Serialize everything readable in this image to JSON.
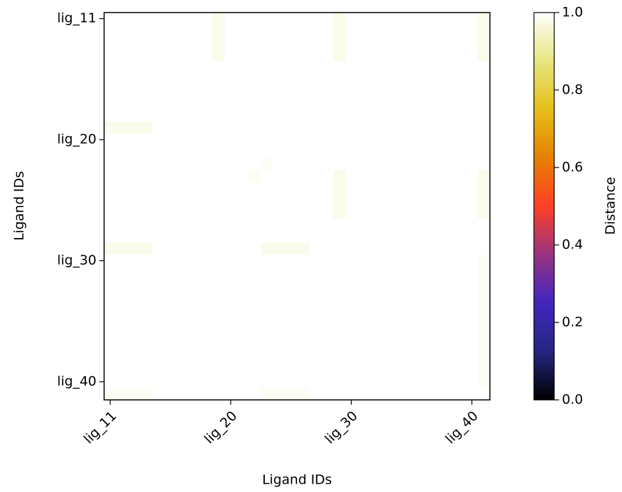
{
  "chart_data": {
    "type": "heatmap",
    "xlabel": "Ligand IDs",
    "ylabel": "Ligand IDs",
    "colorbar_label": "Distance",
    "categories": [
      "lig_11",
      null,
      null,
      null,
      null,
      null,
      null,
      null,
      null,
      null,
      "lig_20",
      null,
      null,
      null,
      null,
      null,
      null,
      null,
      null,
      null,
      "lig_30",
      null,
      null,
      null,
      null,
      null,
      null,
      null,
      null,
      null,
      "lig_40",
      null
    ],
    "colormap": [
      "#000000",
      "#262680",
      "#4026bf",
      "#993380",
      "#ff4026",
      "#e68000",
      "#e6bf1a",
      "#e6e680",
      "#ffffff"
    ],
    "clim": [
      0,
      1
    ],
    "cticks": [
      {
        "value": 0,
        "label": "0.0"
      },
      {
        "value": 0.2,
        "label": "0.2"
      },
      {
        "value": 0.4,
        "label": "0.4"
      },
      {
        "value": 0.6,
        "label": "0.6"
      },
      {
        "value": 0.8,
        "label": "0.8"
      },
      {
        "value": 1,
        "label": "1.0"
      }
    ],
    "values": [
      [
        1,
        1,
        1,
        1,
        1,
        1,
        1,
        1,
        1,
        0.98,
        1,
        1,
        1,
        1,
        1,
        1,
        1,
        1,
        1,
        0.98,
        1,
        1,
        1,
        1,
        1,
        1,
        1,
        1,
        1,
        1,
        1,
        0.98
      ],
      [
        1,
        1,
        1,
        1,
        1,
        1,
        1,
        1,
        1,
        0.98,
        1,
        1,
        1,
        1,
        1,
        1,
        1,
        1,
        1,
        0.98,
        1,
        1,
        1,
        1,
        1,
        1,
        1,
        1,
        1,
        1,
        1,
        0.98
      ],
      [
        1,
        1,
        1,
        1,
        1,
        1,
        1,
        1,
        1,
        0.98,
        1,
        1,
        1,
        1,
        1,
        1,
        1,
        1,
        1,
        0.98,
        1,
        1,
        1,
        1,
        1,
        1,
        1,
        1,
        1,
        1,
        1,
        0.98
      ],
      [
        1,
        1,
        1,
        1,
        1,
        1,
        1,
        1,
        1,
        0.98,
        1,
        1,
        1,
        1,
        1,
        1,
        1,
        1,
        1,
        0.98,
        1,
        1,
        1,
        1,
        1,
        1,
        1,
        1,
        1,
        1,
        1,
        0.98
      ],
      [
        1,
        1,
        1,
        1,
        1,
        1,
        1,
        1,
        1,
        1,
        1,
        1,
        1,
        1,
        1,
        1,
        1,
        1,
        1,
        1,
        1,
        1,
        1,
        1,
        1,
        1,
        1,
        1,
        1,
        1,
        1,
        1
      ],
      [
        1,
        1,
        1,
        1,
        1,
        1,
        1,
        1,
        1,
        1,
        1,
        1,
        1,
        1,
        1,
        1,
        1,
        1,
        1,
        1,
        1,
        1,
        1,
        1,
        1,
        1,
        1,
        1,
        1,
        1,
        1,
        1
      ],
      [
        1,
        1,
        1,
        1,
        1,
        1,
        1,
        1,
        1,
        1,
        1,
        1,
        1,
        1,
        1,
        1,
        1,
        1,
        1,
        1,
        1,
        1,
        1,
        1,
        1,
        1,
        1,
        1,
        1,
        1,
        1,
        1
      ],
      [
        1,
        1,
        1,
        1,
        1,
        1,
        1,
        1,
        1,
        1,
        1,
        1,
        1,
        1,
        1,
        1,
        1,
        1,
        1,
        1,
        1,
        1,
        1,
        1,
        1,
        1,
        1,
        1,
        1,
        1,
        1,
        1
      ],
      [
        1,
        1,
        1,
        1,
        1,
        1,
        1,
        1,
        1,
        1,
        1,
        1,
        1,
        1,
        1,
        1,
        1,
        1,
        1,
        1,
        1,
        1,
        1,
        1,
        1,
        1,
        1,
        1,
        1,
        1,
        1,
        1
      ],
      [
        0.98,
        0.98,
        0.98,
        0.98,
        1,
        1,
        1,
        1,
        1,
        1,
        1,
        1,
        1,
        1,
        1,
        1,
        1,
        1,
        1,
        1,
        1,
        1,
        1,
        1,
        1,
        1,
        1,
        1,
        1,
        1,
        1,
        1
      ],
      [
        1,
        1,
        1,
        1,
        1,
        1,
        1,
        1,
        1,
        1,
        1,
        1,
        1,
        1,
        1,
        1,
        1,
        1,
        1,
        1,
        1,
        1,
        1,
        1,
        1,
        1,
        1,
        1,
        1,
        1,
        1,
        1
      ],
      [
        1,
        1,
        1,
        1,
        1,
        1,
        1,
        1,
        1,
        1,
        1,
        1,
        1,
        1,
        1,
        1,
        1,
        1,
        1,
        1,
        1,
        1,
        1,
        1,
        1,
        1,
        1,
        1,
        1,
        1,
        1,
        1
      ],
      [
        1,
        1,
        1,
        1,
        1,
        1,
        1,
        1,
        1,
        1,
        1,
        1,
        1,
        0.99,
        1,
        1,
        1,
        1,
        1,
        1,
        1,
        1,
        1,
        1,
        1,
        1,
        1,
        1,
        1,
        1,
        1,
        1
      ],
      [
        1,
        1,
        1,
        1,
        1,
        1,
        1,
        1,
        1,
        1,
        1,
        1,
        0.99,
        1,
        1,
        1,
        1,
        1,
        1,
        0.98,
        1,
        1,
        1,
        1,
        1,
        1,
        1,
        1,
        1,
        1,
        1,
        0.98
      ],
      [
        1,
        1,
        1,
        1,
        1,
        1,
        1,
        1,
        1,
        1,
        1,
        1,
        1,
        1,
        1,
        1,
        1,
        1,
        1,
        0.98,
        1,
        1,
        1,
        1,
        1,
        1,
        1,
        1,
        1,
        1,
        1,
        0.98
      ],
      [
        1,
        1,
        1,
        1,
        1,
        1,
        1,
        1,
        1,
        1,
        1,
        1,
        1,
        1,
        1,
        1,
        1,
        1,
        1,
        0.98,
        1,
        1,
        1,
        1,
        1,
        1,
        1,
        1,
        1,
        1,
        1,
        0.98
      ],
      [
        1,
        1,
        1,
        1,
        1,
        1,
        1,
        1,
        1,
        1,
        1,
        1,
        1,
        1,
        1,
        1,
        1,
        1,
        1,
        0.98,
        1,
        1,
        1,
        1,
        1,
        1,
        1,
        1,
        1,
        1,
        1,
        0.98
      ],
      [
        1,
        1,
        1,
        1,
        1,
        1,
        1,
        1,
        1,
        1,
        1,
        1,
        1,
        1,
        1,
        1,
        1,
        1,
        1,
        1,
        1,
        1,
        1,
        1,
        1,
        1,
        1,
        1,
        1,
        1,
        1,
        1
      ],
      [
        1,
        1,
        1,
        1,
        1,
        1,
        1,
        1,
        1,
        1,
        1,
        1,
        1,
        1,
        1,
        1,
        1,
        1,
        1,
        1,
        1,
        1,
        1,
        1,
        1,
        1,
        1,
        1,
        1,
        1,
        1,
        1
      ],
      [
        0.98,
        0.98,
        0.98,
        0.98,
        1,
        1,
        1,
        1,
        1,
        1,
        1,
        1,
        1,
        0.98,
        0.98,
        0.98,
        0.98,
        1,
        1,
        1,
        1,
        1,
        1,
        1,
        1,
        1,
        1,
        1,
        1,
        1,
        1,
        1
      ],
      [
        1,
        1,
        1,
        1,
        1,
        1,
        1,
        1,
        1,
        1,
        1,
        1,
        1,
        1,
        1,
        1,
        1,
        1,
        1,
        1,
        1,
        1,
        1,
        1,
        1,
        1,
        1,
        1,
        1,
        1,
        1,
        0.99
      ],
      [
        1,
        1,
        1,
        1,
        1,
        1,
        1,
        1,
        1,
        1,
        1,
        1,
        1,
        1,
        1,
        1,
        1,
        1,
        1,
        1,
        1,
        1,
        1,
        1,
        1,
        1,
        1,
        1,
        1,
        1,
        1,
        0.99
      ],
      [
        1,
        1,
        1,
        1,
        1,
        1,
        1,
        1,
        1,
        1,
        1,
        1,
        1,
        1,
        1,
        1,
        1,
        1,
        1,
        1,
        1,
        1,
        1,
        1,
        1,
        1,
        1,
        1,
        1,
        1,
        1,
        0.99
      ],
      [
        1,
        1,
        1,
        1,
        1,
        1,
        1,
        1,
        1,
        1,
        1,
        1,
        1,
        1,
        1,
        1,
        1,
        1,
        1,
        1,
        1,
        1,
        1,
        1,
        1,
        1,
        1,
        1,
        1,
        1,
        1,
        0.99
      ],
      [
        1,
        1,
        1,
        1,
        1,
        1,
        1,
        1,
        1,
        1,
        1,
        1,
        1,
        1,
        1,
        1,
        1,
        1,
        1,
        1,
        1,
        1,
        1,
        1,
        1,
        1,
        1,
        1,
        1,
        1,
        1,
        0.99
      ],
      [
        1,
        1,
        1,
        1,
        1,
        1,
        1,
        1,
        1,
        1,
        1,
        1,
        1,
        1,
        1,
        1,
        1,
        1,
        1,
        1,
        1,
        1,
        1,
        1,
        1,
        1,
        1,
        1,
        1,
        1,
        1,
        0.99
      ],
      [
        1,
        1,
        1,
        1,
        1,
        1,
        1,
        1,
        1,
        1,
        1,
        1,
        1,
        1,
        1,
        1,
        1,
        1,
        1,
        1,
        1,
        1,
        1,
        1,
        1,
        1,
        1,
        1,
        1,
        1,
        1,
        0.99
      ],
      [
        1,
        1,
        1,
        1,
        1,
        1,
        1,
        1,
        1,
        1,
        1,
        1,
        1,
        1,
        1,
        1,
        1,
        1,
        1,
        1,
        1,
        1,
        1,
        1,
        1,
        1,
        1,
        1,
        1,
        1,
        1,
        0.99
      ],
      [
        1,
        1,
        1,
        1,
        1,
        1,
        1,
        1,
        1,
        1,
        1,
        1,
        1,
        1,
        1,
        1,
        1,
        1,
        1,
        1,
        1,
        1,
        1,
        1,
        1,
        1,
        1,
        1,
        1,
        1,
        1,
        0.99
      ],
      [
        1,
        1,
        1,
        1,
        1,
        1,
        1,
        1,
        1,
        1,
        1,
        1,
        1,
        1,
        1,
        1,
        1,
        1,
        1,
        1,
        1,
        1,
        1,
        1,
        1,
        1,
        1,
        1,
        1,
        1,
        1,
        0.99
      ],
      [
        1,
        1,
        1,
        1,
        1,
        1,
        1,
        1,
        1,
        1,
        1,
        1,
        1,
        1,
        1,
        1,
        1,
        1,
        1,
        1,
        1,
        1,
        1,
        1,
        1,
        1,
        1,
        1,
        1,
        1,
        1,
        0.99
      ],
      [
        0.99,
        0.99,
        0.99,
        0.99,
        1,
        1,
        1,
        1,
        1,
        1,
        1,
        1,
        1,
        0.99,
        0.99,
        0.99,
        0.99,
        1,
        1,
        1,
        1,
        1,
        1,
        1,
        1,
        1,
        1,
        1,
        1,
        1,
        1,
        1
      ]
    ]
  }
}
